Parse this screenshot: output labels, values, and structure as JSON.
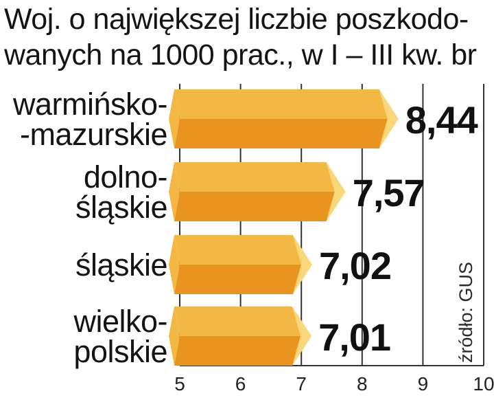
{
  "title_lines": [
    "Woj. o największej liczbie poszkodo-",
    "wanych na 1000 prac., w I – III kw. br"
  ],
  "source": "źródło: GUS",
  "colors": {
    "bar_top": "#f3b744",
    "bar_bottom": "#e8941f",
    "bar_tip": "#f9d77a",
    "gridline": "#333333",
    "text": "#141414"
  },
  "chart_data": {
    "type": "bar",
    "orientation": "horizontal",
    "title": "Woj. o największej liczbie poszkodowanych na 1000 prac., w I – III kw. br",
    "categories": [
      [
        "warmińsko-",
        "-mazurskie"
      ],
      [
        "dolno-",
        "śląskie"
      ],
      [
        "śląskie"
      ],
      [
        "wielko-",
        "polskie"
      ]
    ],
    "values": [
      8.44,
      7.57,
      7.02,
      7.01
    ],
    "value_labels": [
      "8,44",
      "7,57",
      "7,02",
      "7,01"
    ],
    "xlim": [
      5,
      10
    ],
    "xticks": [
      "5",
      "6",
      "7",
      "8",
      "9",
      "10"
    ],
    "grid": true,
    "legend": "none"
  }
}
